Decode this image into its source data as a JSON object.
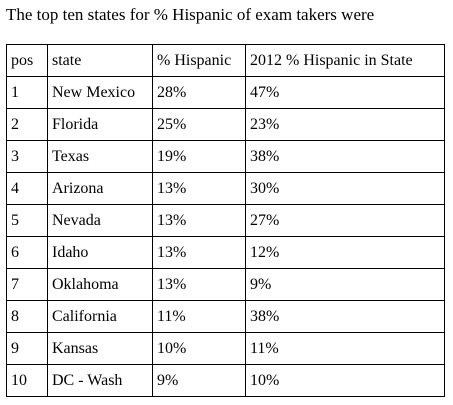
{
  "caption": "The top ten states for % Hispanic of exam takers were",
  "table": {
    "headers": [
      "pos",
      "state",
      "% Hispanic",
      "2012 % Hispanic in State"
    ],
    "rows": [
      [
        "1",
        "New Mexico",
        "28%",
        "47%"
      ],
      [
        "2",
        "Florida",
        "25%",
        "23%"
      ],
      [
        "3",
        "Texas",
        "19%",
        "38%"
      ],
      [
        "4",
        "Arizona",
        "13%",
        "30%"
      ],
      [
        "5",
        "Nevada",
        "13%",
        "27%"
      ],
      [
        "6",
        "Idaho",
        "13%",
        "12%"
      ],
      [
        "7",
        "Oklahoma",
        "13%",
        "9%"
      ],
      [
        "8",
        "California",
        "11%",
        "38%"
      ],
      [
        "9",
        "Kansas",
        "10%",
        "11%"
      ],
      [
        "10",
        "DC - Wash",
        "9%",
        "10%"
      ]
    ]
  }
}
